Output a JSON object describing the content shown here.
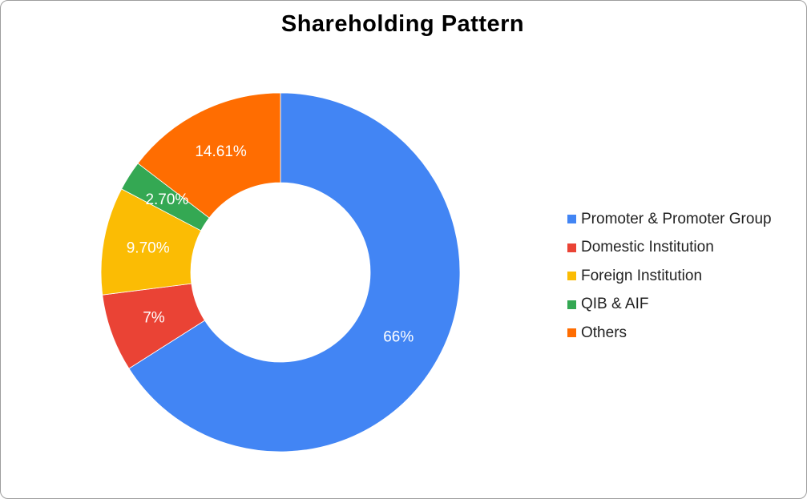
{
  "chart_data": {
    "type": "pie",
    "donut": true,
    "title": "Shareholding Pattern",
    "legend_position": "right",
    "slices": [
      {
        "label": "Promoter & Promoter Group",
        "value": 66,
        "display": "66%",
        "color": "#4285F4"
      },
      {
        "label": "Domestic Institution",
        "value": 7,
        "display": "7%",
        "color": "#EA4335"
      },
      {
        "label": "Foreign Institution",
        "value": 9.7,
        "display": "9.70%",
        "color": "#FBBC04"
      },
      {
        "label": "QIB & AIF",
        "value": 2.7,
        "display": "2.70%",
        "color": "#34A853"
      },
      {
        "label": "Others",
        "value": 14.61,
        "display": "14.61%",
        "color": "#FF6D01"
      }
    ]
  }
}
